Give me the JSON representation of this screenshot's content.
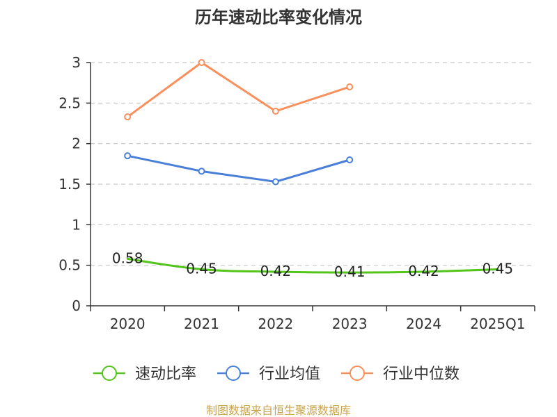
{
  "chart_data": {
    "type": "line",
    "title": "历年速动比率变化情况",
    "categories": [
      "2020",
      "2021",
      "2022",
      "2023",
      "2024",
      "2025Q1"
    ],
    "ylim": [
      0,
      3
    ],
    "yticks": [
      0,
      0.5,
      1,
      1.5,
      2,
      2.5,
      3
    ],
    "ytick_labels": [
      "0",
      "0.5",
      "1",
      "1.5",
      "2",
      "2.5",
      "3"
    ],
    "grid": true,
    "legend_position": "bottom",
    "series": [
      {
        "name": "速动比率",
        "color": "#52c41a",
        "values": [
          0.58,
          0.45,
          0.42,
          0.41,
          0.42,
          0.45
        ],
        "labels": [
          "0.58",
          "0.45",
          "0.42",
          "0.41",
          "0.42",
          "0.45"
        ],
        "smooth": true,
        "markers": false,
        "show_labels": true
      },
      {
        "name": "行业均值",
        "color": "#4a7fd9",
        "values": [
          1.85,
          1.66,
          1.53,
          1.8,
          null,
          null
        ],
        "smooth": false,
        "markers": true,
        "show_labels": false
      },
      {
        "name": "行业中位数",
        "color": "#f98f5a",
        "values": [
          2.33,
          3.0,
          2.4,
          2.7,
          null,
          null
        ],
        "smooth": false,
        "markers": true,
        "show_labels": false
      }
    ],
    "source": "制图数据来自恒生聚源数据库"
  }
}
